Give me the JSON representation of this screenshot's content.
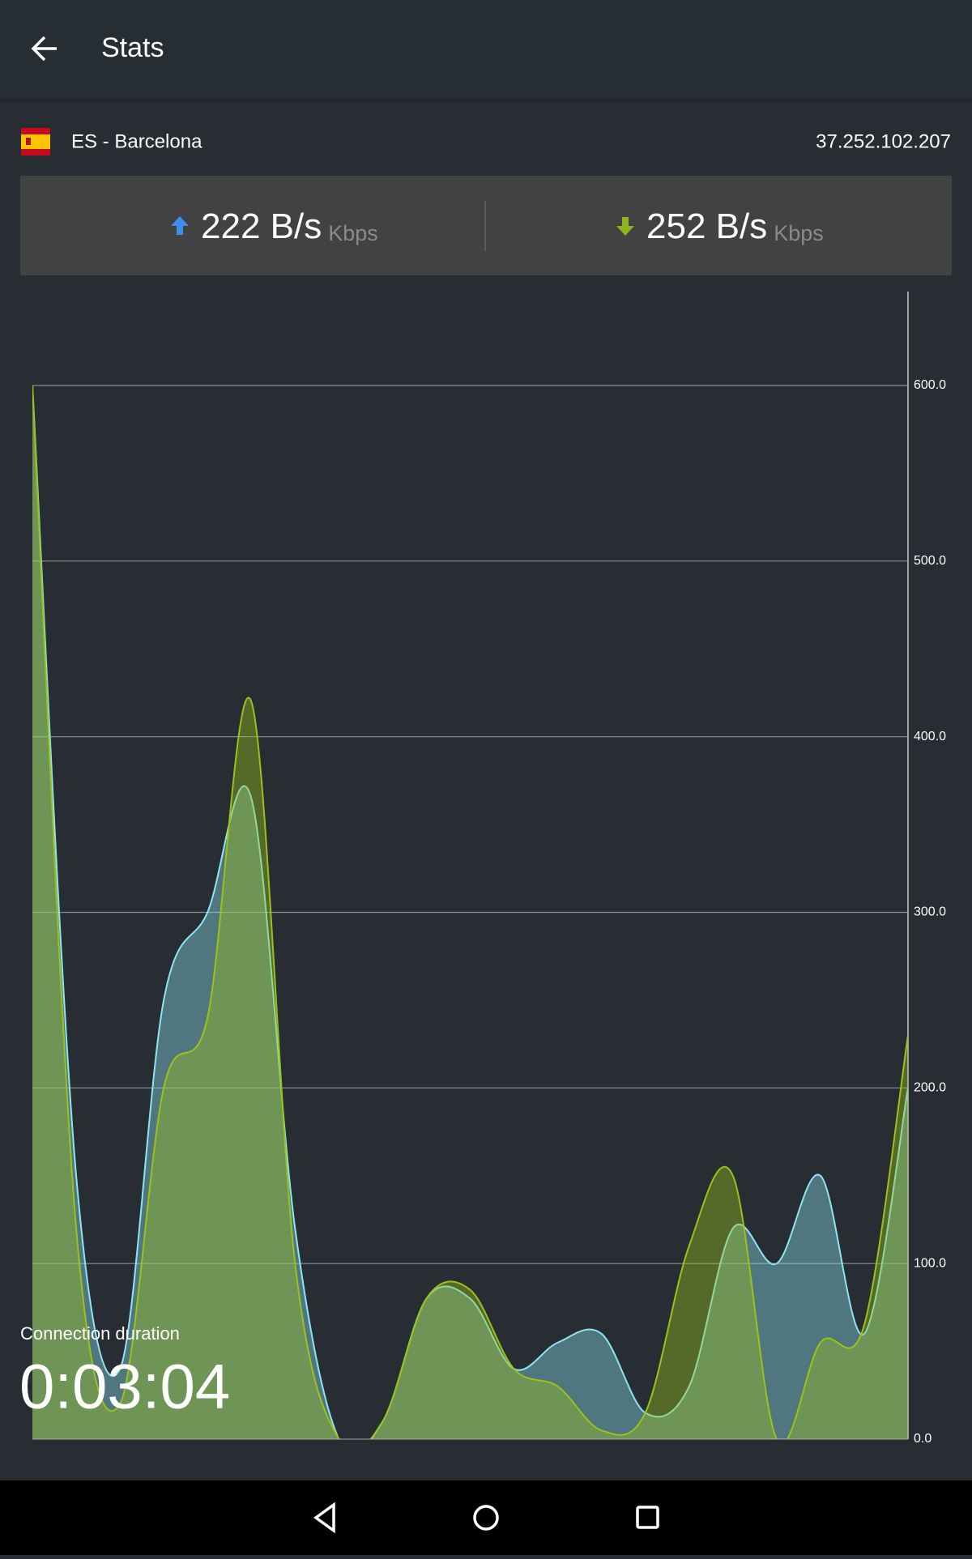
{
  "header": {
    "title": "Stats"
  },
  "server": {
    "location": "ES - Barcelona",
    "ip": "37.252.102.207"
  },
  "stats": {
    "upload": {
      "value": "222 B/s",
      "unit": "Kbps"
    },
    "download": {
      "value": "252 B/s",
      "unit": "Kbps"
    }
  },
  "connection": {
    "label": "Connection duration",
    "duration": "0:03:04"
  },
  "chart_data": {
    "type": "area",
    "ylim": [
      0,
      650
    ],
    "yticks": [
      {
        "value": 0,
        "label": "0.0"
      },
      {
        "value": 100,
        "label": "100.0"
      },
      {
        "value": 200,
        "label": "200.0"
      },
      {
        "value": 300,
        "label": "300.0"
      },
      {
        "value": 400,
        "label": "400.0"
      },
      {
        "value": 500,
        "label": "500.0"
      },
      {
        "value": 600,
        "label": "600.0"
      }
    ],
    "grid": true,
    "series": [
      {
        "color": "#8ee4f2",
        "values": [
          600,
          150,
          40,
          250,
          300,
          365,
          120,
          0,
          10,
          80,
          80,
          40,
          55,
          60,
          15,
          30,
          120,
          100,
          150,
          60,
          200
        ]
      },
      {
        "color": "#9cc21a",
        "values": [
          600,
          120,
          20,
          200,
          240,
          420,
          100,
          0,
          10,
          80,
          85,
          40,
          30,
          5,
          15,
          110,
          150,
          0,
          55,
          65,
          230
        ]
      }
    ]
  }
}
